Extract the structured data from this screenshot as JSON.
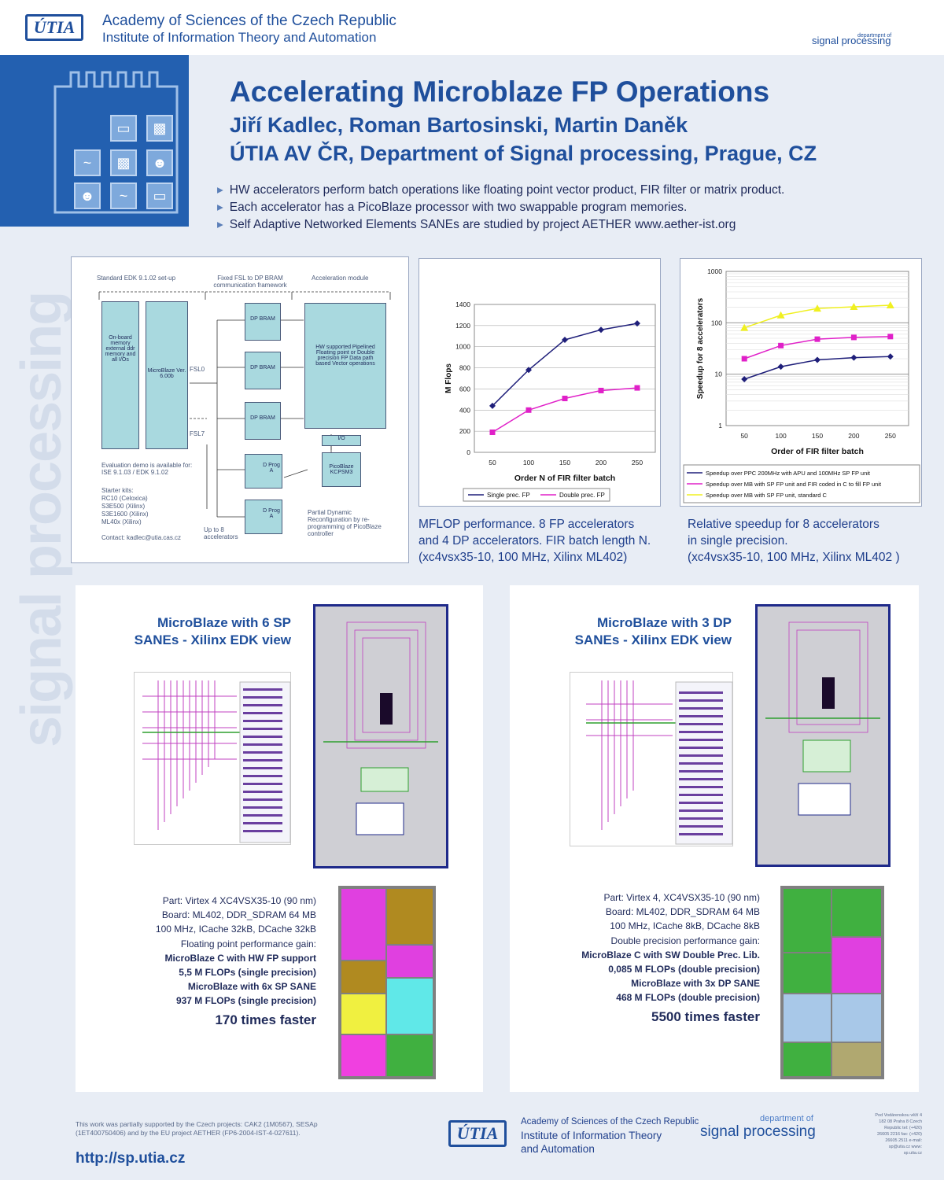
{
  "header": {
    "org_line1": "Academy of Sciences of the Czech Republic",
    "org_line2": "Institute of Information Theory and Automation",
    "utia_logo": "ÚTIA",
    "sp_logo": "signal processing",
    "sp_logo_small": "department of",
    "side_text": "signal processing"
  },
  "title": {
    "main": "Accelerating Microblaze FP Operations",
    "authors": "Jiří Kadlec, Roman Bartosinski, Martin Daněk",
    "affiliation": "ÚTIA AV ČR, Department of Signal processing, Prague, CZ"
  },
  "intro_bullets": [
    "HW accelerators perform batch operations like floating point vector product, FIR filter or matrix product.",
    "Each accelerator has a PicoBlaze processor with two swappable program memories.",
    "Self Adaptive Networked Elements SANEs are studied by project AETHER www.aether-ist.org"
  ],
  "diagram": {
    "top_left": "Standard EDK 9.1.02 set-up",
    "top_mid": "Fixed FSL to DP BRAM communication framework",
    "top_right": "Acceleration module",
    "onboard": "On-board memory external ddr memory and all I/Os",
    "microblaze": "MicroBlaze Ver. 6.00b",
    "fsl0": "FSL0",
    "fsl7": "FSL7",
    "dp_bram": "DP BRAM",
    "hw_supported": "HW supported Pipelined Floating point or Double precision FP Data path based Vector operations",
    "io": "I/O",
    "picoblaze": "PicoBlaze KCPSM3",
    "dprog": "D Prog A",
    "upto8": "Up to 8 accelerators",
    "partial": "Partial Dynamic Reconfiguration by re-programming of PicoBlaze controller",
    "eval": "Evaluation demo is available for: ISE 9.1.03 / EDK 9.1.02",
    "starter_title": "Starter kits:",
    "starter_kits": [
      "RC10      (Celoxica)",
      "S3E500   (Xilinx)",
      "S3E1600  (Xilinx)",
      "ML40x     (Xilinx)"
    ],
    "contact": "Contact:   kadlec@utia.cas.cz"
  },
  "chart_data": [
    {
      "type": "line",
      "x": [
        50,
        100,
        150,
        200,
        250
      ],
      "series": [
        {
          "name": "Single  prec. FP",
          "values": [
            440,
            780,
            1065,
            1160,
            1220
          ],
          "color": "#1f1f7a"
        },
        {
          "name": "Double prec. FP",
          "values": [
            190,
            400,
            510,
            585,
            610
          ],
          "color": "#e020c8"
        }
      ],
      "xlabel": "Order N of FIR filter batch",
      "ylabel": "M Flops",
      "ylim": [
        0,
        1400
      ],
      "yticks": [
        0,
        200,
        400,
        600,
        800,
        1000,
        1200,
        1400
      ],
      "legend": "bottom"
    },
    {
      "type": "line",
      "x": [
        50,
        100,
        150,
        200,
        250
      ],
      "scale": "log",
      "series": [
        {
          "name": "Speedup over PPC 200MHz with APU and 100MHz SP FP unit",
          "values": [
            8,
            14,
            19,
            21,
            22
          ],
          "color": "#1f1f7a"
        },
        {
          "name": "Speedup over MB with SP FP unit and FIR      coded in C to fill FP unit",
          "values": [
            20,
            36,
            48,
            52,
            54
          ],
          "color": "#e020c8"
        },
        {
          "name": "Speedup over MB with SP FP unit, standard C",
          "values": [
            80,
            140,
            190,
            205,
            220
          ],
          "color": "#f0f020"
        }
      ],
      "xlabel": "Order of FIR filter batch",
      "ylabel": "Speedup for 8 accelerators",
      "ylim": [
        1,
        1000
      ],
      "yticks": [
        1,
        10,
        100,
        1000
      ],
      "legend": "bottom"
    }
  ],
  "captions": {
    "mflop": [
      "MFLOP performance.  8 FP accelerators",
      "and 4 DP accelerators. FIR batch length N.",
      "(xc4vsx35-10, 100 MHz, Xilinx ML402)"
    ],
    "speedup": [
      "Relative speedup for 8 accelerators",
      "in single precision.",
      "(xc4vsx35-10, 100 MHz, Xilinx ML402 )"
    ]
  },
  "left_section": {
    "title1": "MicroBlaze with 6 SP",
    "title2": "SANEs - Xilinx EDK view",
    "specs": [
      "Part: Virtex 4 XC4VSX35-10  (90 nm)",
      "Board: ML402, DDR_SDRAM 64 MB",
      "100 MHz, ICache 32kB, DCache 32kB",
      "Floating point performance gain:"
    ],
    "bold_specs": [
      "MicroBlaze C with HW FP support",
      "5,5 M FLOPs (single precision)",
      "MicroBlaze with 6x SP SANE",
      "937 M FLOPs (single precision)"
    ],
    "result": "170 times faster"
  },
  "right_section": {
    "title1": "MicroBlaze with 3 DP",
    "title2": "SANEs - Xilinx EDK view",
    "specs": [
      "Part: Virtex 4, XC4VSX35-10  (90 nm)",
      "Board: ML402, DDR_SDRAM 64 MB",
      "100 MHz, ICache 8kB, DCache 8kB",
      "Double precision performance gain:"
    ],
    "bold_specs": [
      "MicroBlaze C with SW Double Prec. Lib.",
      "0,085 M FLOPs (double precision)",
      "MicroBlaze with 3x DP SANE",
      "468 M FLOPs (double precision)"
    ],
    "result": "5500 times faster"
  },
  "footer": {
    "note": "This work was partially supported by the Czech projects: CAK2 (1M0567), SESAp (1ET400750406) and by the EU project AETHER (FP6-2004-IST-4-027611).",
    "url": "http://sp.utia.cz",
    "org1": "Academy of Sciences of the Czech Republic",
    "org2": "Institute of Information Theory",
    "org3": "and Automation",
    "sp_small": "department of",
    "sp": "signal processing",
    "address": "Pod Vodárenskou věží 4 182 08  Praha 8 Czech Republic tel: (+420) 26605 2216 fax: (+420) 26605 2511 e-mail: sp@utia.cz www: sp.utia.cz"
  }
}
